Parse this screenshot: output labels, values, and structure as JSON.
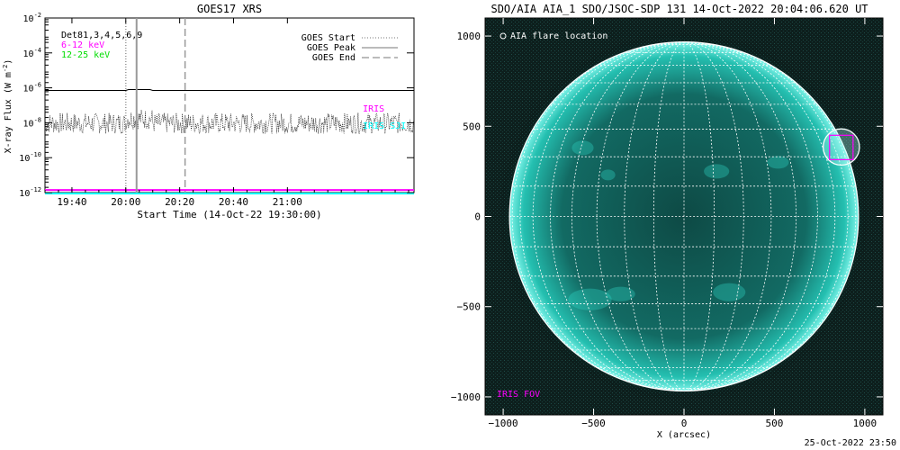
{
  "chart_data": [
    {
      "type": "line",
      "title": "GOES17 XRS",
      "xlabel": "Start Time (14-Oct-22 19:30:00)",
      "ylabel": "X-ray Flux (W m^-2)",
      "ylabel_base": "X-ray Flux (W m",
      "ylabel_sup": "-2",
      "ylabel_end": ")",
      "y_scale": "log",
      "ylim": [
        1e-12,
        0.01
      ],
      "xlim_minutes": [
        0,
        137
      ],
      "x_tick_labels": [
        "19:40",
        "20:00",
        "20:20",
        "20:40",
        "21:00"
      ],
      "x_tick_minutes": [
        10,
        30,
        50,
        70,
        90
      ],
      "y_tick_exponents": [
        -12,
        -10,
        -8,
        -6,
        -4,
        -2
      ],
      "y_tick_base": "10",
      "legend_left": [
        {
          "text": "Det81,3,4,5,6,9",
          "color": "#000000"
        },
        {
          "text": "6-12 keV",
          "color": "#ff00ff"
        },
        {
          "text": "12-25 keV",
          "color": "#00dd00"
        }
      ],
      "legend_right": [
        {
          "text": "GOES Start",
          "style": "dotted"
        },
        {
          "text": "GOES Peak",
          "style": "solid"
        },
        {
          "text": "GOES End",
          "style": "dashed"
        }
      ],
      "series": [
        {
          "name": "",
          "color": "#000000",
          "style": "solid",
          "y_log_mean": -6.15
        },
        {
          "name": "",
          "color": "#000000",
          "style": "dotted-noisy",
          "y_log_mean": -7.85,
          "y_log_noise": 0.6
        },
        {
          "name": "6-12 keV",
          "color": "#ff00ff",
          "style": "solid",
          "y_log_mean": -11.85
        },
        {
          "name": "12-25 keV",
          "color": "#00ffff",
          "style": "solid",
          "y_log_mean": -12.05
        }
      ],
      "vertical_lines": [
        {
          "label": "GOES Start",
          "minute": 30,
          "style": "dotted",
          "color": "#999999"
        },
        {
          "label": "GOES Peak",
          "minute": 34,
          "style": "solid",
          "color": "#999999"
        },
        {
          "label": "GOES End",
          "minute": 52,
          "style": "dashed",
          "color": "#999999"
        }
      ],
      "annotations": [
        {
          "text": "IRIS",
          "color": "#ff00ff",
          "x_minute": 118,
          "y_log": -7.35
        },
        {
          "text": "IRIS SJI",
          "color": "#00ffff",
          "x_minute": 118,
          "y_log": -8.35
        }
      ]
    },
    {
      "type": "image",
      "title": "SDO/AIA AIA_1 SDO/JSOC-SDP 131 14-Oct-2022 20:04:06.620 UT",
      "xlabel": "X (arcsec)",
      "ylabel": "",
      "xlim": [
        -1100,
        1100
      ],
      "ylim": [
        -1100,
        1100
      ],
      "x_tick_values": [
        -1000,
        -500,
        0,
        500,
        1000
      ],
      "y_tick_values": [
        -1000,
        -500,
        0,
        500,
        1000
      ],
      "legend_text": "AIA flare location",
      "fov_label": "IRIS FOV",
      "disk_radius_arcsec": 965,
      "flare_location_arcsec": [
        870,
        385
      ],
      "flare_circle_radius_arcsec": 100,
      "iris_fov_box_arcsec": {
        "x0": 805,
        "y0": 315,
        "x1": 935,
        "y1": 450
      },
      "colors": {
        "disk": "#24bfb0",
        "grid": "#ffffff",
        "background": "#000000",
        "fov": "#ff00ff"
      }
    }
  ],
  "footer": {
    "timestamp": "25-Oct-2022 23:50"
  }
}
